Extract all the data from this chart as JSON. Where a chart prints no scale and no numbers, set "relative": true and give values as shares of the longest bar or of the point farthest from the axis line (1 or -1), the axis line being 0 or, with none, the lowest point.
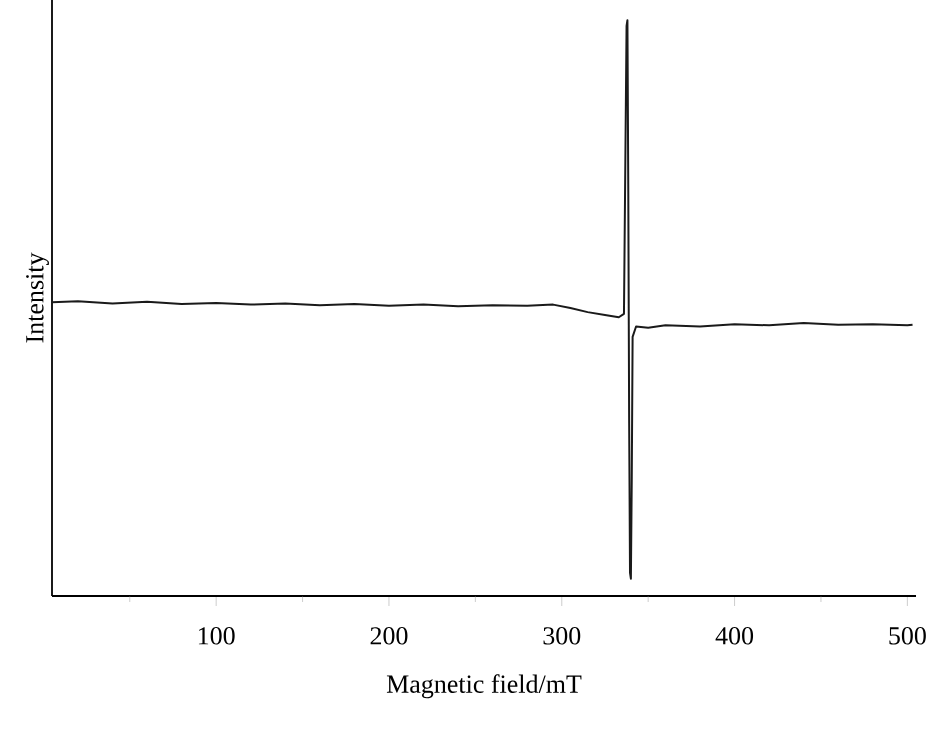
{
  "chart_data": {
    "type": "line",
    "xlabel": "Magnetic field/mT",
    "ylabel": "Intensity",
    "relative": true,
    "color": "#1a1a1a",
    "xlim": [
      5,
      505
    ],
    "xticks": [
      {
        "value": 50,
        "label": null
      },
      100,
      {
        "value": 150,
        "label": null
      },
      200,
      {
        "value": 250,
        "label": null
      },
      300,
      {
        "value": 350,
        "label": null
      },
      400,
      {
        "value": 450,
        "label": null
      },
      500
    ],
    "x": [
      5,
      20,
      40,
      60,
      80,
      100,
      120,
      140,
      160,
      180,
      200,
      220,
      240,
      260,
      280,
      295,
      305,
      315,
      325,
      333,
      336,
      337.5,
      338,
      338.5,
      339,
      339.5,
      340,
      340.5,
      341,
      343,
      350,
      360,
      380,
      400,
      420,
      440,
      460,
      480,
      500,
      503
    ],
    "values": [
      0.51,
      0.512,
      0.508,
      0.511,
      0.507,
      0.509,
      0.506,
      0.508,
      0.505,
      0.507,
      0.504,
      0.506,
      0.503,
      0.505,
      0.504,
      0.506,
      0.5,
      0.493,
      0.488,
      0.484,
      0.49,
      0.99,
      1.0,
      0.7,
      0.3,
      0.04,
      0.03,
      0.2,
      0.45,
      0.468,
      0.466,
      0.47,
      0.468,
      0.472,
      0.47,
      0.474,
      0.471,
      0.472,
      0.47,
      0.471
    ]
  }
}
